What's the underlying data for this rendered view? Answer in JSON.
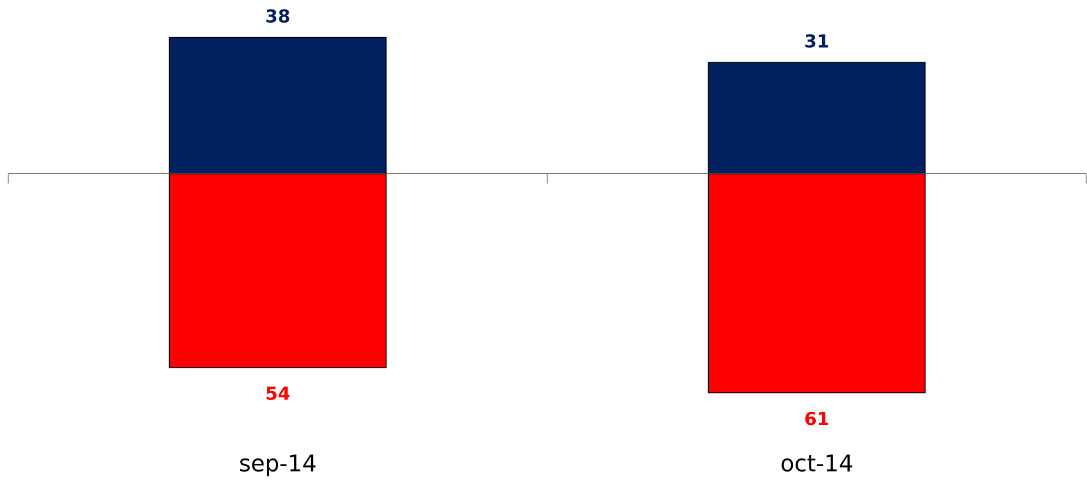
{
  "chart_data": {
    "type": "bar",
    "categories": [
      "sep-14",
      "oct-14"
    ],
    "series": [
      {
        "color": "#002060",
        "values": [
          38,
          31
        ]
      },
      {
        "color": "#ff0000",
        "values": [
          -54,
          -61
        ],
        "value_labels": [
          "54",
          "61"
        ]
      }
    ],
    "ylim": [
      -70,
      48
    ]
  }
}
